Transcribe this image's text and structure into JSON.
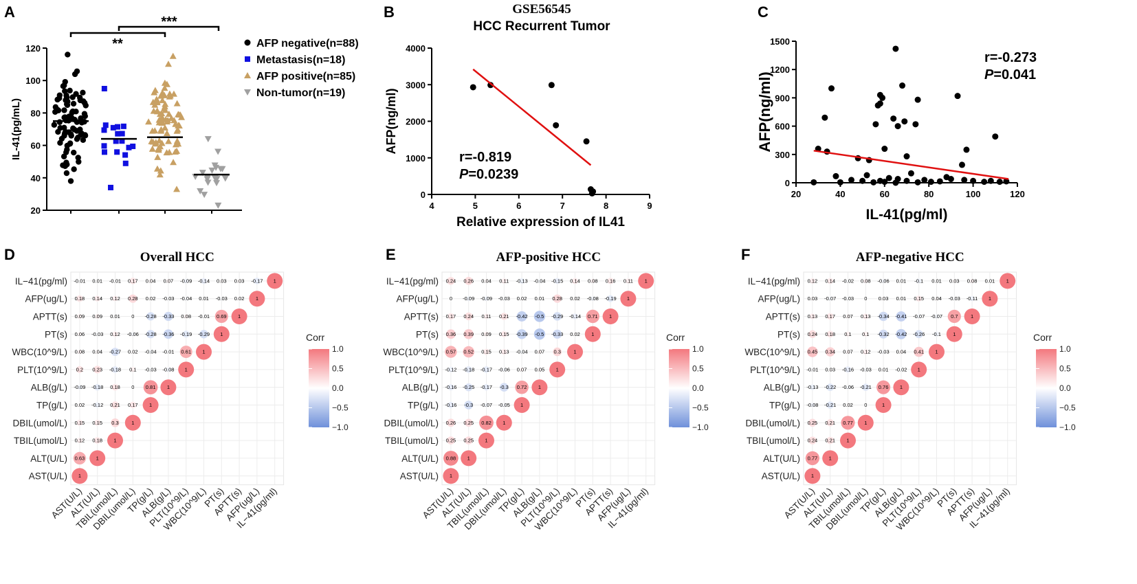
{
  "chart_data": [
    {
      "id": "A",
      "type": "scatter",
      "panel_label": "A",
      "ylabel": "IL-41(pg/mL)",
      "ylim": [
        20,
        120
      ],
      "yticks": [
        20,
        40,
        60,
        80,
        100,
        120
      ],
      "significance": [
        "**",
        "***"
      ],
      "groups": [
        {
          "name": "AFP negative(n=88)",
          "n": 88,
          "mean": 75,
          "min": 38,
          "max": 116,
          "marker": "circle",
          "color": "#000000"
        },
        {
          "name": "Metastasis(n=18)",
          "n": 18,
          "mean": 64,
          "min": 34,
          "max": 95,
          "marker": "square",
          "color": "#1010e0"
        },
        {
          "name": "AFP positive(n=85)",
          "n": 85,
          "mean": 65,
          "min": 33,
          "max": 115,
          "marker": "triangle-up",
          "color": "#c8a063"
        },
        {
          "name": "Non-tumor(n=19)",
          "n": 19,
          "mean": 42,
          "min": 23,
          "max": 64,
          "marker": "triangle-down",
          "color": "#a0a0a0"
        }
      ]
    },
    {
      "id": "B",
      "type": "scatter",
      "panel_label": "B",
      "title": "GSE56545",
      "subtitle": "HCC Recurrent Tumor",
      "xlabel": "Relative expression of  IL41",
      "ylabel": "AFP(ng/ml)",
      "xlim": [
        4,
        9
      ],
      "ylim": [
        0,
        4000
      ],
      "xticks": [
        4,
        5,
        6,
        7,
        8,
        9
      ],
      "yticks": [
        0,
        1000,
        2000,
        3000,
        4000
      ],
      "points": [
        [
          4.95,
          2930
        ],
        [
          5.35,
          2990
        ],
        [
          6.75,
          2990
        ],
        [
          6.85,
          1890
        ],
        [
          7.55,
          1450
        ],
        [
          7.65,
          140
        ],
        [
          7.68,
          30
        ],
        [
          7.7,
          80
        ]
      ],
      "fit": {
        "x": [
          4.95,
          7.65
        ],
        "y": [
          3420,
          800
        ]
      },
      "r_text": "r=-0.819",
      "p_label": "P",
      "p_value": "=0.0239"
    },
    {
      "id": "C",
      "type": "scatter",
      "panel_label": "C",
      "xlabel": "IL-41(pg/ml)",
      "ylabel": "AFP(ng/ml)",
      "xlim": [
        20,
        120
      ],
      "ylim": [
        0,
        1500
      ],
      "xticks": [
        20,
        40,
        60,
        80,
        100,
        120
      ],
      "yticks": [
        0,
        300,
        600,
        900,
        1200,
        1500
      ],
      "points": [
        [
          30,
          360
        ],
        [
          33,
          690
        ],
        [
          36,
          1000
        ],
        [
          34,
          330
        ],
        [
          38,
          70
        ],
        [
          48,
          260
        ],
        [
          53,
          240
        ],
        [
          56,
          620
        ],
        [
          57,
          820
        ],
        [
          58,
          840
        ],
        [
          59,
          900
        ],
        [
          58,
          930
        ],
        [
          60,
          360
        ],
        [
          64,
          680
        ],
        [
          65,
          1420
        ],
        [
          66,
          600
        ],
        [
          68,
          1030
        ],
        [
          69,
          650
        ],
        [
          70,
          280
        ],
        [
          74,
          620
        ],
        [
          75,
          880
        ],
        [
          93,
          920
        ],
        [
          95,
          190
        ],
        [
          97,
          350
        ],
        [
          110,
          490
        ],
        [
          66,
          40
        ],
        [
          72,
          100
        ],
        [
          52,
          80
        ],
        [
          45,
          30
        ],
        [
          60,
          10
        ],
        [
          78,
          30
        ],
        [
          85,
          15
        ],
        [
          90,
          40
        ],
        [
          100,
          20
        ],
        [
          105,
          10
        ],
        [
          115,
          15
        ],
        [
          40,
          5
        ],
        [
          28,
          5
        ],
        [
          50,
          20
        ],
        [
          62,
          50
        ],
        [
          88,
          60
        ],
        [
          58,
          20
        ],
        [
          70,
          20
        ],
        [
          81,
          10
        ],
        [
          96,
          30
        ],
        [
          108,
          20
        ],
        [
          112,
          10
        ],
        [
          65,
          0
        ],
        [
          75,
          5
        ],
        [
          55,
          5
        ]
      ],
      "fit": {
        "x": [
          28,
          116
        ],
        "y": [
          340,
          40
        ]
      },
      "r_text": "r=-0.273",
      "p_label": "P",
      "p_value": "=0.041"
    },
    {
      "id": "D",
      "type": "heatmap",
      "panel_label": "D",
      "title": "Overall HCC",
      "legend_title": "Corr",
      "legend_ticks": [
        "1.0",
        "0.5",
        "0.0",
        "−0.5",
        "−1.0"
      ],
      "row_labels": [
        "IL−41(pg/ml)",
        "AFP(ug/L)",
        "APTT(s)",
        "PT(s)",
        "WBC(10^9/L)",
        "PLT(10^9/L)",
        "ALB(g/L)",
        "TP(g/L)",
        "DBIL(umol/L)",
        "TBIL(umol/L)",
        "ALT(U/L)",
        "AST(U/L)"
      ],
      "col_labels": [
        "AST(U/L)",
        "ALT(U/L)",
        "TBIL(umol/L)",
        "DBIL(umol/L)",
        "TP(g/L)",
        "ALB(g/L)",
        "PLT(10^9/L)",
        "WBC(10^9/L)",
        "PT(s)",
        "APTT(s)",
        "AFP(ug/L)",
        "IL−41(pg/ml)"
      ],
      "rows": [
        [
          "-0.01",
          "0.01",
          "-0.01",
          "0.17",
          "0.04",
          "0.07",
          "-0.09",
          "-0.14",
          "0.03",
          "0.03",
          "-0.17",
          "1"
        ],
        [
          "0.18",
          "0.14",
          "0.12",
          "0.28",
          "0.02",
          "-0.03",
          "-0.04",
          "0.01",
          "-0.03",
          "0.02",
          "1"
        ],
        [
          "0.09",
          "0.09",
          "0.01",
          "0",
          "-0.28",
          "-0.33",
          "0.08",
          "-0.01",
          "0.69",
          "1"
        ],
        [
          "0.06",
          "-0.03",
          "0.12",
          "-0.06",
          "-0.28",
          "-0.36",
          "-0.19",
          "-0.29",
          "1"
        ],
        [
          "0.08",
          "0.04",
          "-0.27",
          "0.02",
          "-0.04",
          "-0.01",
          "0.61",
          "1"
        ],
        [
          "0.2",
          "0.23",
          "-0.18",
          "0.1",
          "-0.03",
          "-0.08",
          "1"
        ],
        [
          "-0.09",
          "-0.18",
          "0.18",
          "0",
          "0.81",
          "1"
        ],
        [
          "0.02",
          "-0.12",
          "0.21",
          "0.17",
          "1"
        ],
        [
          "0.15",
          "0.15",
          "0.3",
          "1"
        ],
        [
          "0.12",
          "0.18",
          "1"
        ],
        [
          "0.63",
          "1"
        ],
        [
          "1"
        ]
      ]
    },
    {
      "id": "E",
      "type": "heatmap",
      "panel_label": "E",
      "title": "AFP-positive HCC",
      "legend_title": "Corr",
      "legend_ticks": [
        "1.0",
        "0.5",
        "0.0",
        "−0.5",
        "−1.0"
      ],
      "row_labels": [
        "IL−41(pg/ml)",
        "AFP(ug/L)",
        "APTT(s)",
        "PT(s)",
        "WBC(10^9/L)",
        "PLT(10^9/L)",
        "ALB(g/L)",
        "TP(g/L)",
        "DBIL(umol/L)",
        "TBIL(umol/L)",
        "ALT(U/L)",
        "AST(U/L)"
      ],
      "col_labels": [
        "AST(U/L)",
        "ALT(U/L)",
        "TBIL(umol/L)",
        "DBIL(umol/L)",
        "TP(g/L)",
        "ALB(g/L)",
        "PLT(10^9/L)",
        "WBC(10^9/L)",
        "PT(s)",
        "APTT(s)",
        "AFP(ug/L)",
        "IL−41(pg/ml)"
      ],
      "rows": [
        [
          "0.24",
          "0.26",
          "0.04",
          "0.11",
          "-0.13",
          "-0.04",
          "-0.15",
          "0.14",
          "0.08",
          "0.16",
          "0.11",
          "1"
        ],
        [
          "0",
          "-0.09",
          "-0.09",
          "-0.03",
          "0.02",
          "0.01",
          "0.28",
          "0.02",
          "-0.08",
          "-0.19",
          "1"
        ],
        [
          "0.17",
          "0.24",
          "0.11",
          "0.21",
          "-0.42",
          "-0.5",
          "-0.29",
          "-0.14",
          "0.71",
          "1"
        ],
        [
          "0.36",
          "0.39",
          "0.09",
          "0.15",
          "-0.39",
          "-0.5",
          "-0.33",
          "0.02",
          "1"
        ],
        [
          "0.57",
          "0.52",
          "0.15",
          "0.13",
          "-0.04",
          "0.07",
          "0.3",
          "1"
        ],
        [
          "-0.12",
          "-0.18",
          "-0.17",
          "-0.06",
          "0.07",
          "0.05",
          "1"
        ],
        [
          "-0.16",
          "-0.25",
          "-0.17",
          "-0.3",
          "0.72",
          "1"
        ],
        [
          "-0.16",
          "-0.3",
          "-0.07",
          "-0.05",
          "1"
        ],
        [
          "0.26",
          "0.25",
          "0.82",
          "1"
        ],
        [
          "0.25",
          "0.25",
          "1"
        ],
        [
          "0.88",
          "1"
        ],
        [
          "1"
        ]
      ]
    },
    {
      "id": "F",
      "type": "heatmap",
      "panel_label": "F",
      "title": "AFP-negative HCC",
      "legend_title": "Corr",
      "legend_ticks": [
        "1.0",
        "0.5",
        "0.0",
        "−0.5",
        "−1.0"
      ],
      "row_labels": [
        "IL−41(pg/ml)",
        "AFP(ug/L)",
        "APTT(s)",
        "PT(s)",
        "WBC(10^9/L)",
        "PLT(10^9/L)",
        "ALB(g/L)",
        "TP(g/L)",
        "DBIL(umol/L)",
        "TBIL(umol/L)",
        "ALT(U/L)",
        "AST(U/L)"
      ],
      "col_labels": [
        "AST(U/L)",
        "ALT(U/L)",
        "TBIL(umol/L)",
        "DBIL(umol/L)",
        "TP(g/L)",
        "ALB(g/L)",
        "PLT(10^9/L)",
        "WBC(10^9/L)",
        "PT(s)",
        "APTT(s)",
        "AFP(ug/L)",
        "IL−41(pg/ml)"
      ],
      "rows": [
        [
          "0.12",
          "0.14",
          "-0.02",
          "0.08",
          "-0.06",
          "0.01",
          "-0.1",
          "0.01",
          "0.03",
          "0.08",
          "0.01",
          "1"
        ],
        [
          "0.03",
          "-0.07",
          "-0.03",
          "0",
          "0.03",
          "0.01",
          "0.15",
          "0.04",
          "-0.03",
          "-0.11",
          "1"
        ],
        [
          "0.13",
          "0.17",
          "0.07",
          "0.13",
          "-0.34",
          "-0.41",
          "-0.07",
          "-0.07",
          "0.7",
          "1"
        ],
        [
          "0.24",
          "0.18",
          "0.1",
          "0.1",
          "-0.32",
          "-0.42",
          "-0.26",
          "-0.1",
          "1"
        ],
        [
          "0.45",
          "0.34",
          "0.07",
          "0.12",
          "-0.03",
          "0.04",
          "0.41",
          "1"
        ],
        [
          "-0.01",
          "0.03",
          "-0.16",
          "-0.03",
          "0.01",
          "-0.02",
          "1"
        ],
        [
          "-0.13",
          "-0.22",
          "-0.06",
          "-0.21",
          "0.76",
          "1"
        ],
        [
          "-0.08",
          "-0.21",
          "0.02",
          "0",
          "1"
        ],
        [
          "0.25",
          "0.21",
          "0.77",
          "1"
        ],
        [
          "0.24",
          "0.21",
          "1"
        ],
        [
          "0.77",
          "1"
        ],
        [
          "1"
        ]
      ]
    }
  ]
}
